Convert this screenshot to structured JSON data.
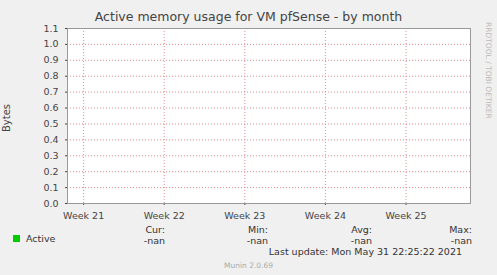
{
  "chart_data": {
    "type": "line",
    "title": "Active memory usage for VM pfSense - by month",
    "y_label": "Bytes",
    "x": [
      20.8,
      25.8
    ],
    "series": [
      {
        "name": "Active",
        "color": "#00cc00",
        "values": [
          null,
          null
        ],
        "stats": {
          "labels": [
            "Cur:",
            "Min:",
            "Avg:",
            "Max:"
          ],
          "values": [
            "-nan",
            "-nan",
            "-nan",
            "-nan"
          ]
        }
      }
    ],
    "xlim": [
      20.8,
      25.8
    ],
    "xticks": [
      {
        "value": 21,
        "label": "Week 21"
      },
      {
        "value": 22,
        "label": "Week 22"
      },
      {
        "value": 23,
        "label": "Week 23"
      },
      {
        "value": 24,
        "label": "Week 24"
      },
      {
        "value": 25,
        "label": "Week 25"
      }
    ],
    "ylim": [
      0,
      1.1
    ],
    "yticks": [
      {
        "value": 0,
        "label": "0.0"
      },
      0.1,
      0.2,
      0.3,
      0.4,
      0.5,
      0.6,
      0.7,
      0.8,
      0.9,
      {
        "value": 1,
        "label": "1.0"
      },
      1.1
    ],
    "grid": true,
    "footer": "Last update: Mon May 31 22:25:22 2021",
    "credit": "Munin 2.0.69",
    "watermark": "RRDTOOL / TOBI OETIKER"
  }
}
